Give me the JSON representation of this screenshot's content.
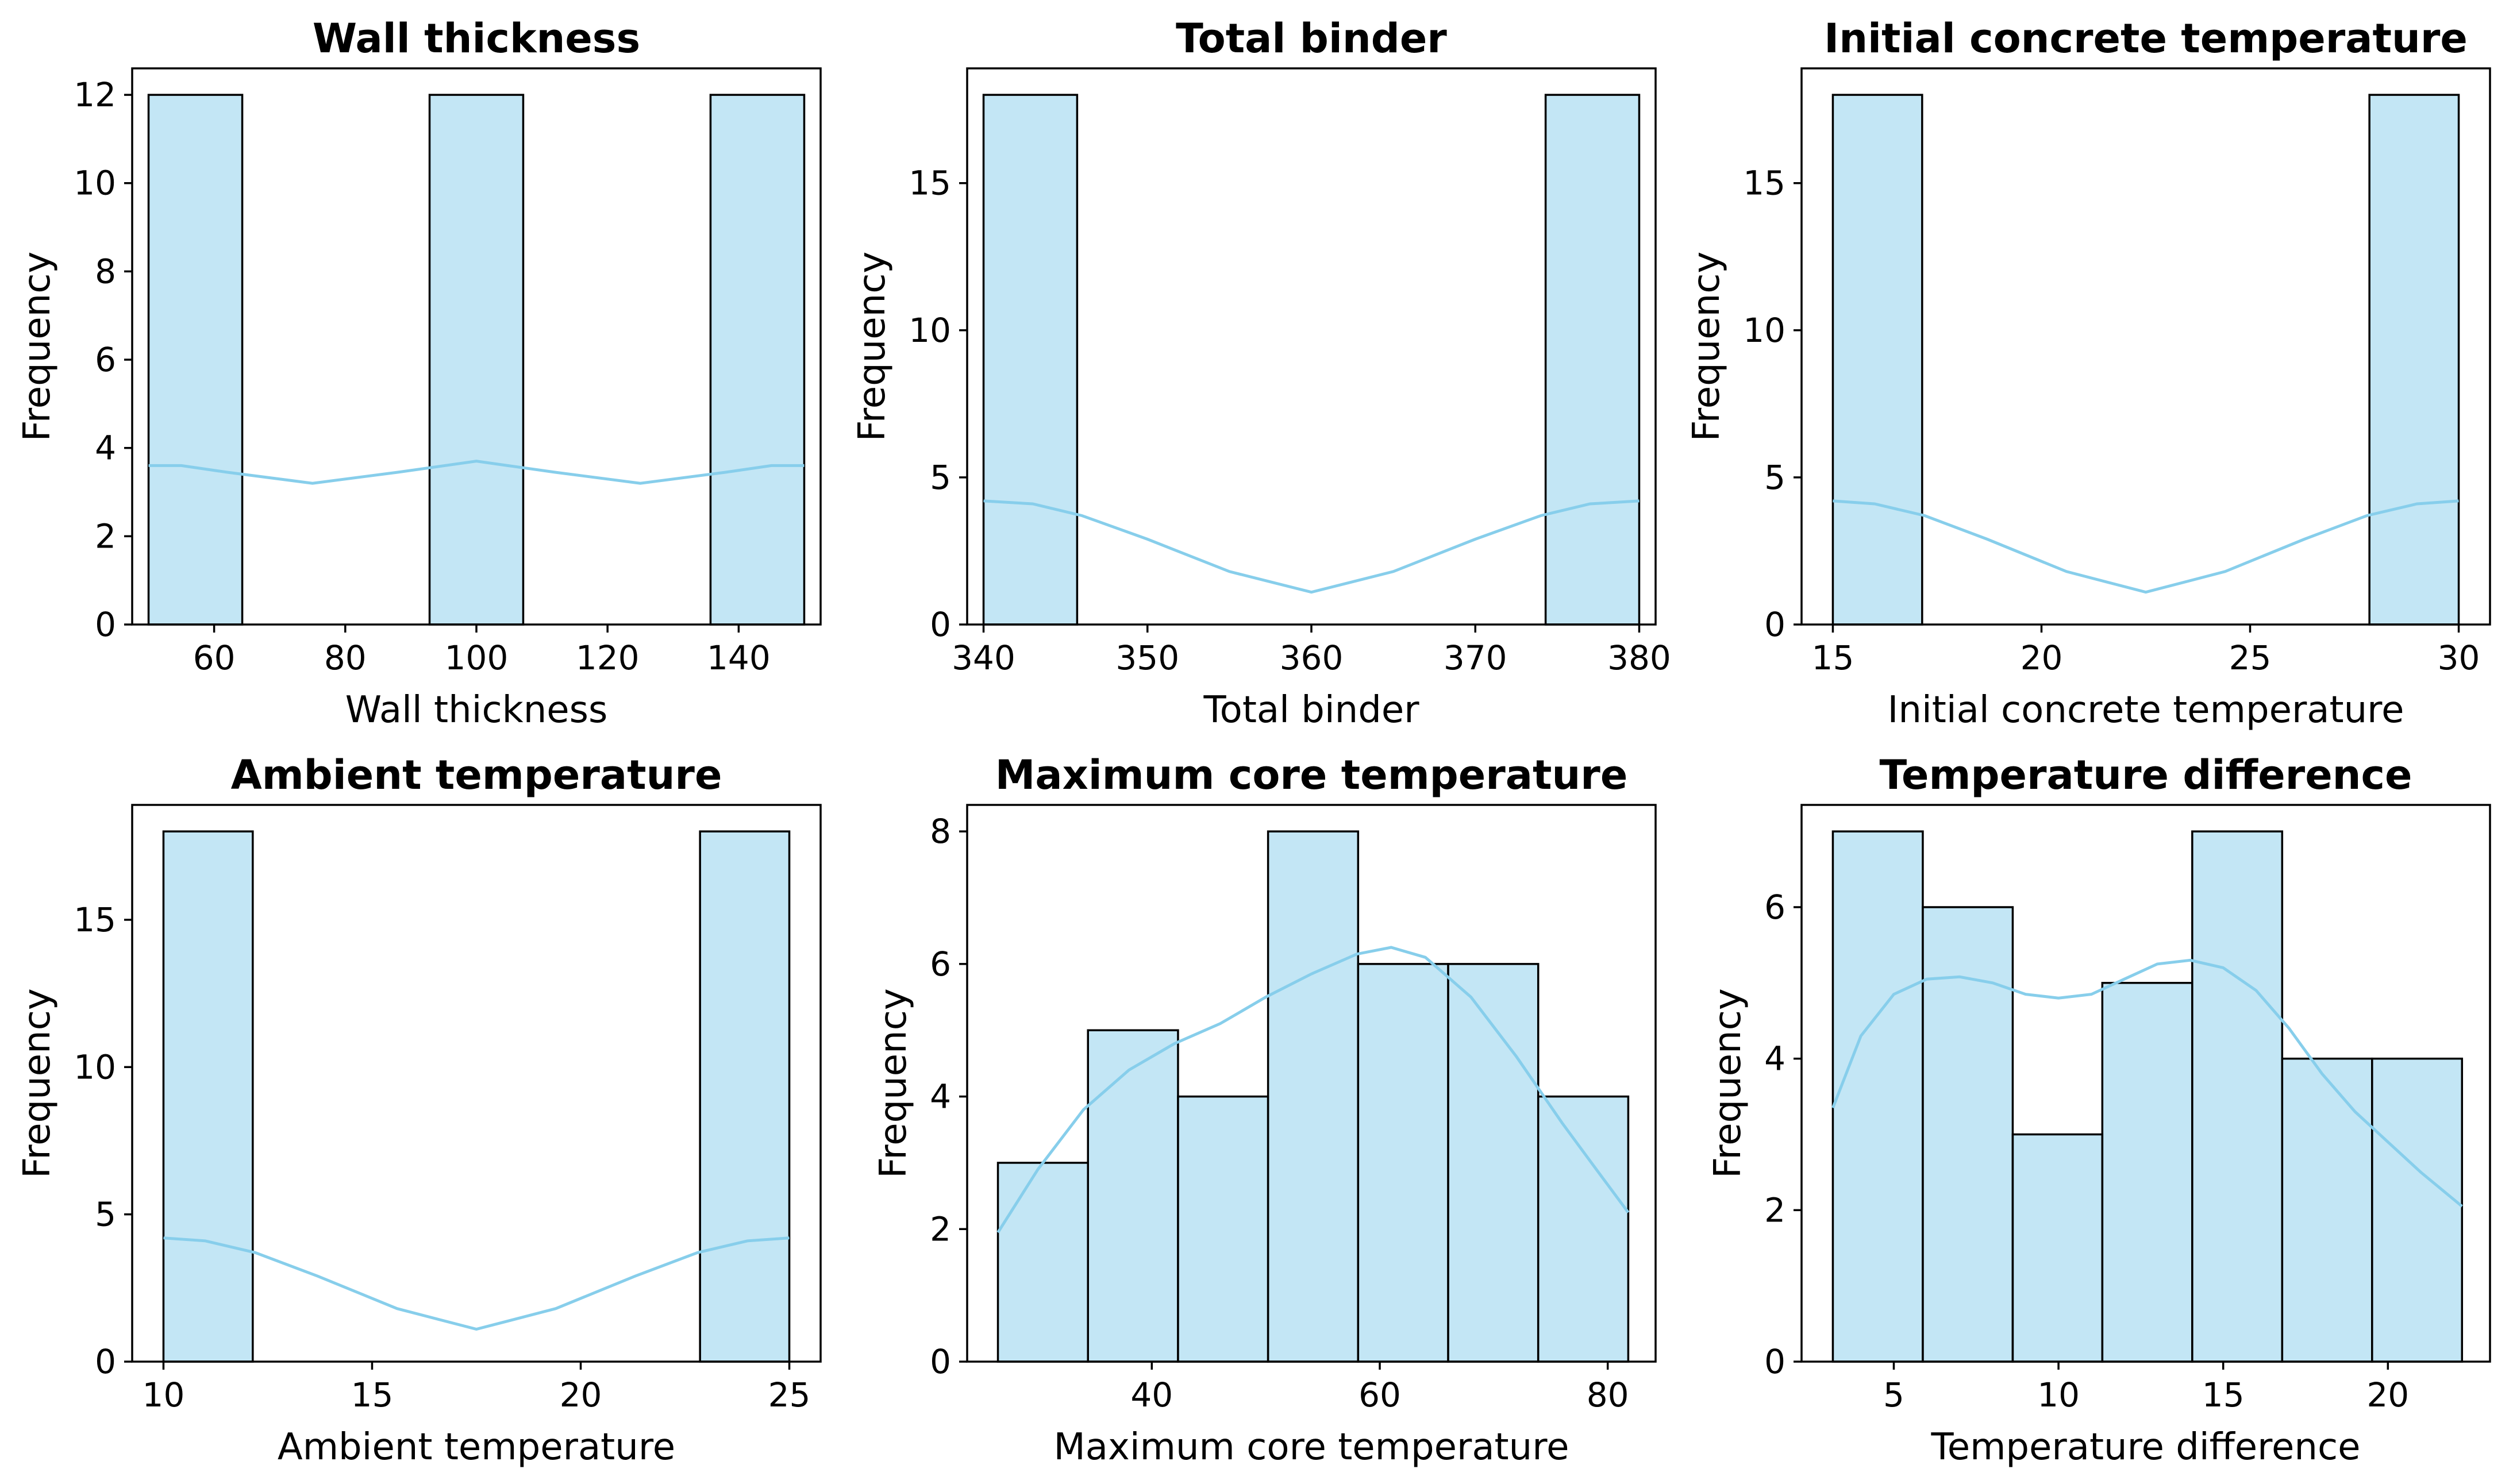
{
  "chart_data": [
    {
      "type": "bar",
      "title": "Wall thickness",
      "xlabel": "Wall thickness",
      "ylabel": "Frequency",
      "xlim": [
        47.5,
        152.5
      ],
      "ylim": [
        0,
        12.6
      ],
      "xticks": [
        60,
        80,
        100,
        120,
        140
      ],
      "yticks": [
        0,
        2,
        4,
        6,
        8,
        10,
        12
      ],
      "bins": [
        [
          50,
          64.29,
          12
        ],
        [
          92.86,
          107.14,
          12
        ],
        [
          135.71,
          150,
          12
        ]
      ],
      "kde": [
        [
          50,
          3.6
        ],
        [
          55,
          3.6
        ],
        [
          62,
          3.45
        ],
        [
          75,
          3.2
        ],
        [
          88,
          3.45
        ],
        [
          100,
          3.7
        ],
        [
          112,
          3.45
        ],
        [
          125,
          3.2
        ],
        [
          138,
          3.45
        ],
        [
          145,
          3.6
        ],
        [
          150,
          3.6
        ]
      ]
    },
    {
      "type": "bar",
      "title": "Total binder",
      "xlabel": "Total binder",
      "ylabel": "Frequency",
      "xlim": [
        339,
        381
      ],
      "ylim": [
        0,
        18.9
      ],
      "xticks": [
        340,
        350,
        360,
        370,
        380
      ],
      "yticks": [
        0,
        5,
        10,
        15
      ],
      "bins": [
        [
          340,
          345.71,
          18
        ],
        [
          374.29,
          380,
          18
        ]
      ],
      "kde": [
        [
          340,
          4.2
        ],
        [
          343,
          4.1
        ],
        [
          346,
          3.7
        ],
        [
          350,
          2.9
        ],
        [
          355,
          1.8
        ],
        [
          360,
          1.1
        ],
        [
          365,
          1.8
        ],
        [
          370,
          2.9
        ],
        [
          374,
          3.7
        ],
        [
          377,
          4.1
        ],
        [
          380,
          4.2
        ]
      ]
    },
    {
      "type": "bar",
      "title": "Initial concrete temperature",
      "xlabel": "Initial concrete temperature",
      "ylabel": "Frequency",
      "xlim": [
        14.25,
        30.75
      ],
      "ylim": [
        0,
        18.9
      ],
      "xticks": [
        15,
        20,
        25,
        30
      ],
      "yticks": [
        0,
        5,
        10,
        15
      ],
      "bins": [
        [
          15,
          17.14,
          18
        ],
        [
          27.86,
          30,
          18
        ]
      ],
      "kde": [
        [
          15,
          4.2
        ],
        [
          16,
          4.1
        ],
        [
          17.2,
          3.7
        ],
        [
          18.7,
          2.9
        ],
        [
          20.6,
          1.8
        ],
        [
          22.5,
          1.1
        ],
        [
          24.4,
          1.8
        ],
        [
          26.3,
          2.9
        ],
        [
          27.8,
          3.7
        ],
        [
          29,
          4.1
        ],
        [
          30,
          4.2
        ]
      ]
    },
    {
      "type": "bar",
      "title": "Ambient temperature",
      "xlabel": "Ambient temperature",
      "ylabel": "Frequency",
      "xlim": [
        9.25,
        25.75
      ],
      "ylim": [
        0,
        18.9
      ],
      "xticks": [
        10,
        15,
        20,
        25
      ],
      "yticks": [
        0,
        5,
        10,
        15
      ],
      "bins": [
        [
          10,
          12.14,
          18
        ],
        [
          22.86,
          25,
          18
        ]
      ],
      "kde": [
        [
          10,
          4.2
        ],
        [
          11,
          4.1
        ],
        [
          12.2,
          3.7
        ],
        [
          13.7,
          2.9
        ],
        [
          15.6,
          1.8
        ],
        [
          17.5,
          1.1
        ],
        [
          19.4,
          1.8
        ],
        [
          21.3,
          2.9
        ],
        [
          22.8,
          3.7
        ],
        [
          24,
          4.1
        ],
        [
          25,
          4.2
        ]
      ]
    },
    {
      "type": "bar",
      "title": "Maximum core temperature",
      "xlabel": "Maximum core temperature",
      "ylabel": "Frequency",
      "xlim": [
        23.8,
        84.2
      ],
      "ylim": [
        0,
        8.4
      ],
      "xticks": [
        40,
        60,
        80
      ],
      "yticks": [
        0,
        2,
        4,
        6,
        8
      ],
      "bins": [
        [
          26.5,
          34.4,
          3
        ],
        [
          34.4,
          42.3,
          5
        ],
        [
          42.3,
          50.2,
          4
        ],
        [
          50.2,
          58.1,
          8
        ],
        [
          58.1,
          66.0,
          6
        ],
        [
          66.0,
          73.9,
          6
        ],
        [
          73.9,
          81.8,
          4
        ]
      ],
      "kde": [
        [
          26.5,
          1.95
        ],
        [
          30,
          2.9
        ],
        [
          34,
          3.8
        ],
        [
          38,
          4.4
        ],
        [
          42,
          4.8
        ],
        [
          46,
          5.1
        ],
        [
          50,
          5.5
        ],
        [
          54,
          5.85
        ],
        [
          58,
          6.15
        ],
        [
          61,
          6.25
        ],
        [
          64,
          6.1
        ],
        [
          68,
          5.5
        ],
        [
          72,
          4.6
        ],
        [
          76,
          3.6
        ],
        [
          79,
          2.9
        ],
        [
          81.8,
          2.25
        ]
      ]
    },
    {
      "type": "bar",
      "title": "Temperature difference",
      "xlabel": "Temperature difference",
      "ylabel": "Frequency",
      "xlim": [
        2.2,
        23.1
      ],
      "ylim": [
        0,
        7.35
      ],
      "xticks": [
        5,
        10,
        15,
        20
      ],
      "yticks": [
        0,
        2,
        4,
        6
      ],
      "bins": [
        [
          3.15,
          5.88,
          7
        ],
        [
          5.88,
          8.61,
          6
        ],
        [
          8.61,
          11.33,
          3
        ],
        [
          11.33,
          14.06,
          5
        ],
        [
          14.06,
          16.79,
          7
        ],
        [
          16.79,
          19.52,
          4
        ],
        [
          19.52,
          22.25,
          4
        ]
      ],
      "kde": [
        [
          3.15,
          3.35
        ],
        [
          4,
          4.3
        ],
        [
          5,
          4.85
        ],
        [
          6,
          5.05
        ],
        [
          7,
          5.08
        ],
        [
          8,
          5.0
        ],
        [
          9,
          4.85
        ],
        [
          10,
          4.8
        ],
        [
          11,
          4.85
        ],
        [
          12,
          5.05
        ],
        [
          13,
          5.25
        ],
        [
          14,
          5.3
        ],
        [
          15,
          5.2
        ],
        [
          16,
          4.9
        ],
        [
          17,
          4.4
        ],
        [
          18,
          3.8
        ],
        [
          19,
          3.3
        ],
        [
          20,
          2.9
        ],
        [
          21,
          2.5
        ],
        [
          22.25,
          2.05
        ]
      ]
    }
  ]
}
